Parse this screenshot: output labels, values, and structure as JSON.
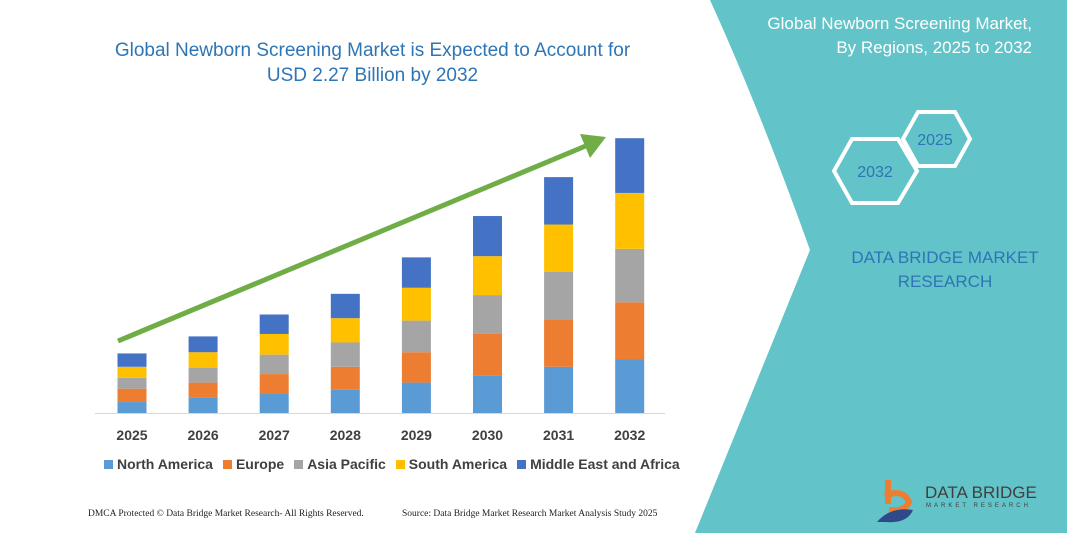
{
  "chart_data": {
    "type": "bar",
    "stacked": true,
    "title": "Global Newborn Screening Market is Expected to Account for USD 2.27 Billion by 2032",
    "categories": [
      "2025",
      "2026",
      "2027",
      "2028",
      "2029",
      "2030",
      "2031",
      "2032"
    ],
    "ylim": [
      0,
      2.27
    ],
    "y_axis_visible": false,
    "grid": false,
    "legend_position": "bottom",
    "series": [
      {
        "name": "North America",
        "color": "#5B9BD5",
        "values": [
          0.09,
          0.13,
          0.16,
          0.19,
          0.25,
          0.31,
          0.38,
          0.44
        ]
      },
      {
        "name": "Europe",
        "color": "#ED7D31",
        "values": [
          0.11,
          0.12,
          0.16,
          0.19,
          0.25,
          0.34,
          0.39,
          0.47
        ]
      },
      {
        "name": "Asia Pacific",
        "color": "#A5A5A5",
        "values": [
          0.09,
          0.12,
          0.16,
          0.2,
          0.26,
          0.32,
          0.39,
          0.44
        ]
      },
      {
        "name": "South America",
        "color": "#FFC000",
        "values": [
          0.09,
          0.13,
          0.17,
          0.2,
          0.27,
          0.32,
          0.39,
          0.46
        ]
      },
      {
        "name": "Middle East and Africa",
        "color": "#4472C4",
        "values": [
          0.11,
          0.13,
          0.16,
          0.2,
          0.25,
          0.33,
          0.39,
          0.45
        ]
      }
    ],
    "trend_arrow_color": "#70AD47"
  },
  "side_panel": {
    "title_line1": "Global Newborn Screening Market,",
    "title_line2": "By Regions, 2025 to 2032",
    "hex_a": "2025",
    "hex_b": "2032",
    "brand_line1": "DATA BRIDGE MARKET",
    "brand_line2": "RESEARCH",
    "panel_color": "#62C3C8"
  },
  "logo": {
    "name": "DATA BRIDGE",
    "sub": "MARKET RESEARCH"
  },
  "footer": {
    "left": "DMCA Protected © Data Bridge Market Research- All Rights Reserved.",
    "right": "Source: Data Bridge Market Research Market Analysis Study 2025"
  }
}
